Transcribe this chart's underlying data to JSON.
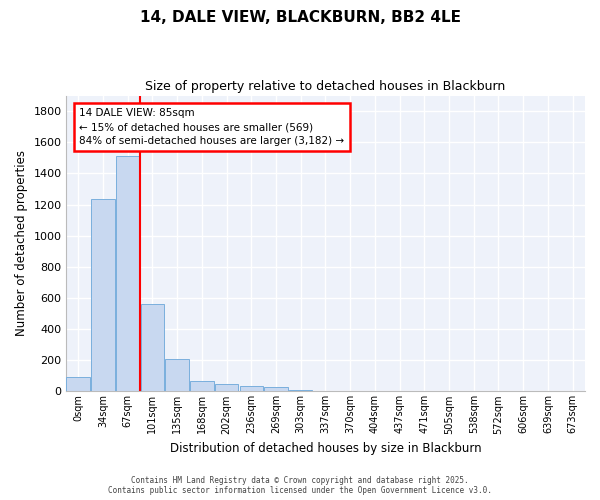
{
  "title": "14, DALE VIEW, BLACKBURN, BB2 4LE",
  "subtitle": "Size of property relative to detached houses in Blackburn",
  "xlabel": "Distribution of detached houses by size in Blackburn",
  "ylabel": "Number of detached properties",
  "bar_color": "#c8d8f0",
  "bar_edge_color": "#7aafdd",
  "categories": [
    "0sqm",
    "34sqm",
    "67sqm",
    "101sqm",
    "135sqm",
    "168sqm",
    "202sqm",
    "236sqm",
    "269sqm",
    "303sqm",
    "337sqm",
    "370sqm",
    "404sqm",
    "437sqm",
    "471sqm",
    "505sqm",
    "538sqm",
    "572sqm",
    "606sqm",
    "639sqm",
    "673sqm"
  ],
  "values": [
    90,
    1235,
    1510,
    560,
    210,
    65,
    45,
    35,
    25,
    12,
    0,
    0,
    0,
    0,
    0,
    0,
    0,
    0,
    0,
    0,
    0
  ],
  "red_line_x": 2.5,
  "annotation_text": "14 DALE VIEW: 85sqm\n← 15% of detached houses are smaller (569)\n84% of semi-detached houses are larger (3,182) →",
  "ylim": [
    0,
    1900
  ],
  "yticks": [
    0,
    200,
    400,
    600,
    800,
    1000,
    1200,
    1400,
    1600,
    1800
  ],
  "plot_bg_color": "#eef2fa",
  "grid_color": "#ffffff",
  "footer_line1": "Contains HM Land Registry data © Crown copyright and database right 2025.",
  "footer_line2": "Contains public sector information licensed under the Open Government Licence v3.0."
}
